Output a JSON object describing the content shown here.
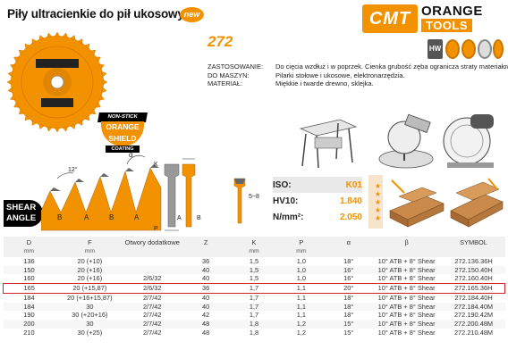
{
  "header": {
    "title": "Piły ultracienkie do pił ukosowych",
    "new_badge": "new",
    "code": "272"
  },
  "brand": {
    "cmt": "CMT",
    "line1": "ORANGE",
    "line2": "TOOLS"
  },
  "badges": {
    "hw": "HW"
  },
  "specs": [
    {
      "key": "ZASTOSOWANIE:",
      "value": "Do cięcia wzdłuż i w poprzek. Cienka grubość zęba ogranicza straty materiałowe."
    },
    {
      "key": "DO MASZYN:",
      "value": "Pilarki stołowe i ukosowe, elektronarzędzia."
    },
    {
      "key": "MATERIAŁ:",
      "value": "Miękkie i twarde drewno, sklejka."
    }
  ],
  "nonstick": {
    "top": "NON-STICK",
    "mid1": "ORANGE",
    "mid2": "SHIELD",
    "bottom": "COATING"
  },
  "shear": {
    "line1": "SHEAR",
    "line2": "ANGLE"
  },
  "diagram": {
    "angle_12": "12°",
    "alpha": "α",
    "label_b1": "B",
    "label_a1": "A",
    "label_b2": "B",
    "label_a2": "A",
    "label_k": "K",
    "label_p": "P",
    "label_a_side": "A",
    "label_b_side": "B",
    "label_5_8": "5~8"
  },
  "properties": [
    {
      "key": "ISO:",
      "value": "K01"
    },
    {
      "key": "HV10:",
      "value": "1.840"
    },
    {
      "key": "N/mm²:",
      "value": "2.050"
    }
  ],
  "stars": "★★★★★",
  "table": {
    "headers": [
      {
        "main": "D",
        "sub": "mm"
      },
      {
        "main": "F",
        "sub": "mm"
      },
      {
        "main": "Otwory dodatkowe",
        "sub": ""
      },
      {
        "main": "Z",
        "sub": ""
      },
      {
        "main": "K",
        "sub": "mm"
      },
      {
        "main": "P",
        "sub": "mm"
      },
      {
        "main": "α",
        "sub": ""
      },
      {
        "main": "β",
        "sub": ""
      },
      {
        "main": "SYMBOL",
        "sub": ""
      }
    ],
    "rows": [
      [
        "136",
        "20 (+10)",
        "",
        "36",
        "1,5",
        "1,0",
        "18°",
        "10° ATB + 8° Shear",
        "272.136.36H"
      ],
      [
        "150",
        "20 (+16)",
        "",
        "40",
        "1,5",
        "1,0",
        "16°",
        "10° ATB + 8° Shear",
        "272.150.40H"
      ],
      [
        "160",
        "20 (+16)",
        "2/6/32",
        "40",
        "1,5",
        "1,0",
        "16°",
        "10° ATB + 8° Shear",
        "272.160.40H"
      ],
      [
        "165",
        "20 (+15,87)",
        "2/6/32",
        "36",
        "1,7",
        "1,1",
        "20°",
        "10° ATB + 8° Shear",
        "272.165.36H"
      ],
      [
        "184",
        "20 (+16+15,87)",
        "2/7/42",
        "40",
        "1,7",
        "1,1",
        "18°",
        "10° ATB + 8° Shear",
        "272.184.40H"
      ],
      [
        "184",
        "30",
        "2/7/42",
        "40",
        "1,7",
        "1,1",
        "18°",
        "10° ATB + 8° Shear",
        "272.184.40M"
      ],
      [
        "190",
        "30 (+20+16)",
        "2/7/42",
        "42",
        "1,7",
        "1,1",
        "18°",
        "10° ATB + 8° Shear",
        "272.190.42M"
      ],
      [
        "200",
        "30",
        "2/7/42",
        "48",
        "1,8",
        "1,2",
        "15°",
        "10° ATB + 8° Shear",
        "272.200.48M"
      ],
      [
        "210",
        "30 (+25)",
        "2/7/42",
        "48",
        "1,8",
        "1,2",
        "15°",
        "10° ATB + 8° Shear",
        "272.210.48M"
      ]
    ],
    "highlight_row": 3
  },
  "colors": {
    "accent": "#f39200",
    "highlight": "#d2232a"
  }
}
